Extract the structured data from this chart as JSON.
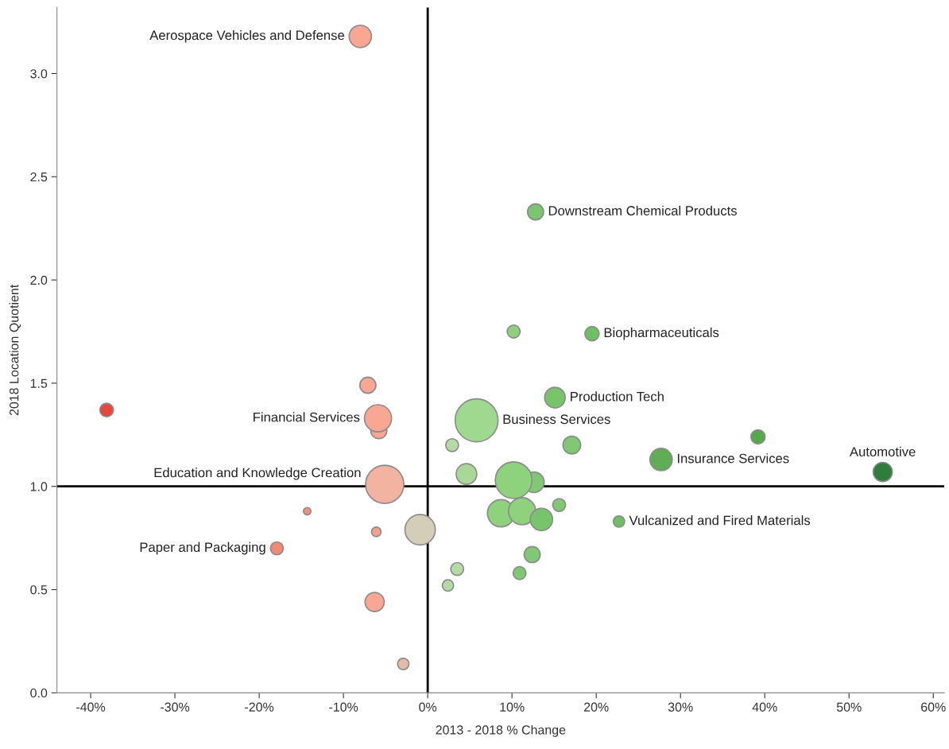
{
  "chart_data": {
    "type": "bubble",
    "xlabel": "2013 - 2018 % Change",
    "ylabel": "2018 Location Quotient",
    "xlim": [
      -44,
      61.3
    ],
    "ylim": [
      0,
      3.32
    ],
    "xticks": [
      {
        "value": -40,
        "label": "-40%"
      },
      {
        "value": -30,
        "label": "-30%"
      },
      {
        "value": -20,
        "label": "-20%"
      },
      {
        "value": -10,
        "label": "-10%"
      },
      {
        "value": 0,
        "label": "0%"
      },
      {
        "value": 10,
        "label": "10%"
      },
      {
        "value": 20,
        "label": "20%"
      },
      {
        "value": 30,
        "label": "30%"
      },
      {
        "value": 40,
        "label": "40%"
      },
      {
        "value": 50,
        "label": "50%"
      },
      {
        "value": 60,
        "label": "60%"
      }
    ],
    "yticks": [
      {
        "value": 0,
        "label": "0.0"
      },
      {
        "value": 0.5,
        "label": "0.5"
      },
      {
        "value": 1,
        "label": "1.0"
      },
      {
        "value": 1.5,
        "label": "1.5"
      },
      {
        "value": 2,
        "label": "2.0"
      },
      {
        "value": 2.5,
        "label": "2.5"
      },
      {
        "value": 3,
        "label": "3.0"
      }
    ],
    "grid": false,
    "ref_lines": [
      {
        "axis": "x",
        "value": 0,
        "color": "#000000"
      },
      {
        "axis": "y",
        "value": 1,
        "color": "#000000"
      }
    ],
    "series": [
      {
        "x": [
          -8.0,
          12.8,
          10.2,
          19.5,
          -7.1,
          -38.1,
          -5.8,
          -5.9,
          -5.1,
          -14.3,
          -6.1,
          -0.9,
          -17.9,
          -6.3,
          -2.9,
          15.1,
          5.8,
          39.2,
          2.9,
          17.1,
          27.7,
          4.6,
          12.6,
          10.2,
          15.6,
          8.7,
          11.2,
          13.5,
          22.7,
          12.4,
          3.5,
          10.9,
          2.4,
          54
        ],
        "values": [
          3.18,
          2.33,
          1.75,
          1.74,
          1.49,
          1.37,
          1.27,
          1.33,
          1.01,
          0.88,
          0.78,
          0.79,
          0.7,
          0.44,
          0.14,
          1.43,
          1.32,
          1.24,
          1.2,
          1.2,
          1.13,
          1.06,
          1.02,
          1.03,
          0.91,
          0.87,
          0.88,
          0.84,
          0.83,
          0.67,
          0.6,
          0.58,
          0.52,
          1.07
        ],
        "sizes": [
          0.27,
          0.14,
          0.09,
          0.11,
          0.14,
          0.1,
          0.14,
          0.4,
          0.79,
          0.03,
          0.05,
          0.5,
          0.09,
          0.2,
          0.07,
          0.23,
          1,
          0.11,
          0.09,
          0.17,
          0.27,
          0.23,
          0.23,
          0.73,
          0.09,
          0.4,
          0.4,
          0.27,
          0.07,
          0.14,
          0.09,
          0.09,
          0.07,
          0.2
        ],
        "colors": [
          "#f9a692",
          "#7cc66f",
          "#8fd07f",
          "#6fbf63",
          "#f9a692",
          "#e8483a",
          "#f9a692",
          "#f9a692",
          "#f2b3a1",
          "#f4907a",
          "#f4a08c",
          "#d4cdb8",
          "#f08a72",
          "#f9a692",
          "#e3bba8",
          "#77c46a",
          "#9fd88f",
          "#55a84c",
          "#b4dba5",
          "#80c873",
          "#5fae55",
          "#a8d898",
          "#80c873",
          "#8ed27e",
          "#80c873",
          "#8ed27e",
          "#8ed27e",
          "#77c46a",
          "#6fbf63",
          "#80c873",
          "#b4dba5",
          "#80c873",
          "#b4dba5",
          "#2e7d3c"
        ]
      }
    ],
    "annotations": [
      {
        "text": "Aerospace Vehicles and Defense",
        "x": -8.0,
        "y": 3.18
      },
      {
        "text": "Downstream Chemical Products",
        "x": 12.8,
        "y": 2.33
      },
      {
        "text": "Biopharmaceuticals",
        "x": 19.5,
        "y": 1.74
      },
      {
        "text": "Production Tech",
        "x": 15.1,
        "y": 1.43
      },
      {
        "text": "Financial Services",
        "x": -5.9,
        "y": 1.33
      },
      {
        "text": "Business Services",
        "x": 5.8,
        "y": 1.32
      },
      {
        "text": "Insurance Services",
        "x": 27.7,
        "y": 1.13
      },
      {
        "text": "Automotive",
        "x": 54,
        "y": 1.07
      },
      {
        "text": "Education and Knowledge Creation",
        "x": -5.1,
        "y": 1.01
      },
      {
        "text": "Vulcanized and Fired Materials",
        "x": 22.7,
        "y": 0.83
      },
      {
        "text": "Paper and Packaging",
        "x": -17.9,
        "y": 0.7
      }
    ]
  }
}
